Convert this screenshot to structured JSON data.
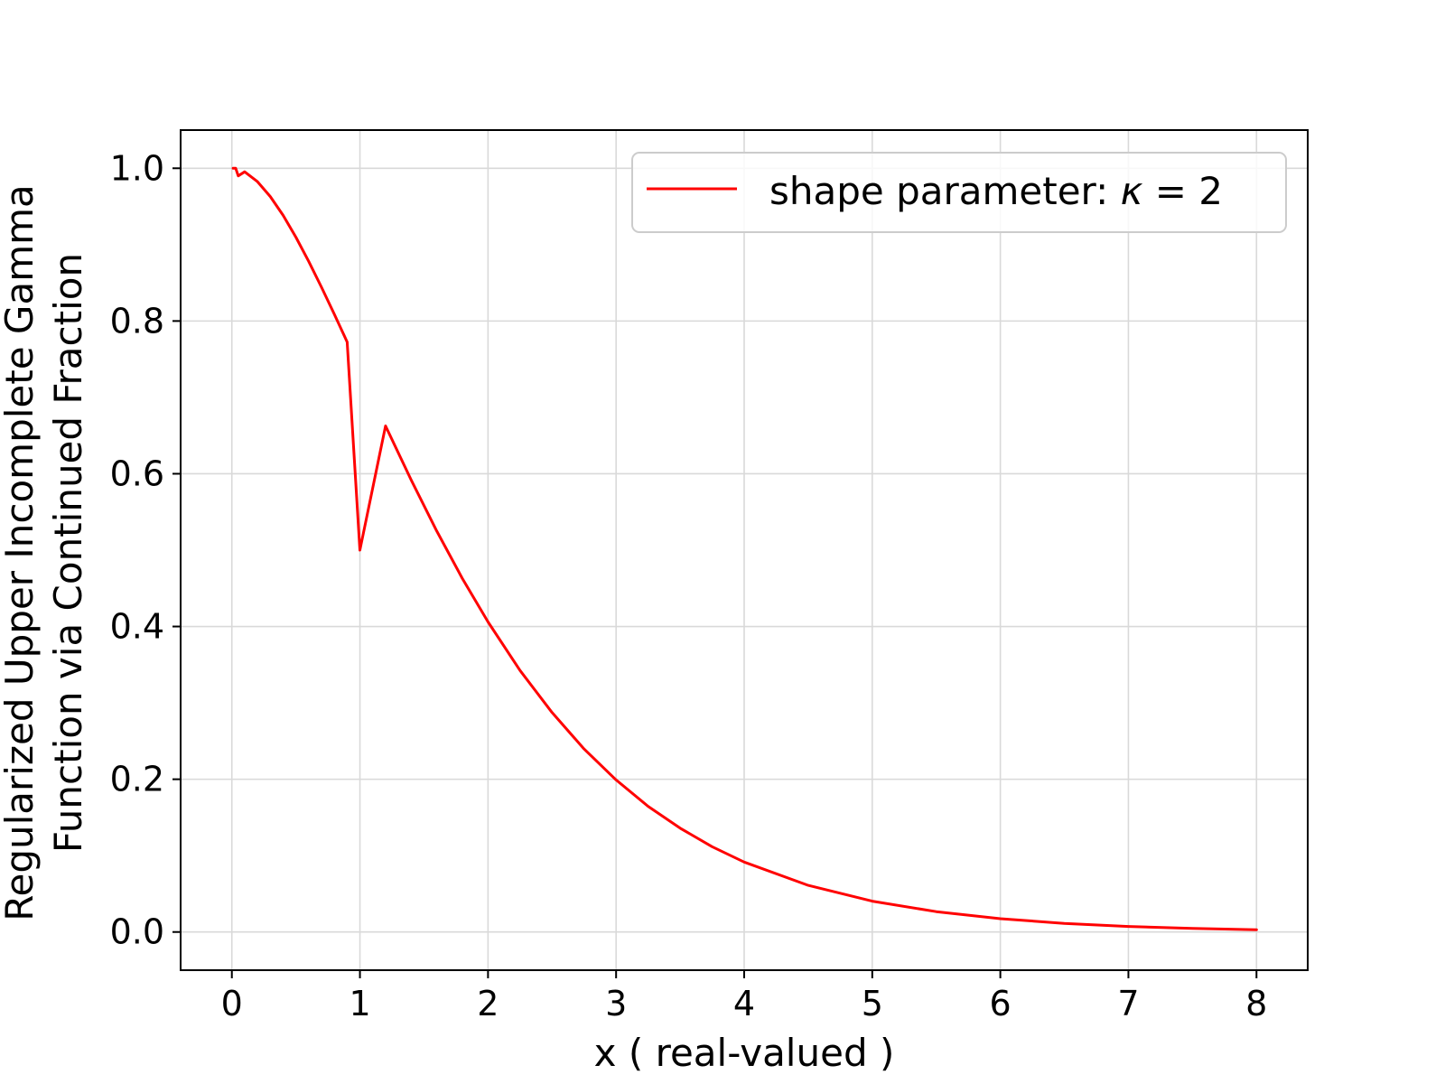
{
  "chart_data": {
    "type": "line",
    "title": "",
    "xlabel": "x ( real-valued )",
    "ylabel_line1": "Regularized Upper Incomplete Gamma",
    "ylabel_line2": "Function via Continued Fraction",
    "xlim": [
      -0.4,
      8.4
    ],
    "ylim": [
      -0.05,
      1.05
    ],
    "xticks": [
      0,
      1,
      2,
      3,
      4,
      5,
      6,
      7,
      8
    ],
    "xtick_labels": [
      "0",
      "1",
      "2",
      "3",
      "4",
      "5",
      "6",
      "7",
      "8"
    ],
    "yticks": [
      0.0,
      0.2,
      0.4,
      0.6,
      0.8,
      1.0
    ],
    "ytick_labels": [
      "0.0",
      "0.2",
      "0.4",
      "0.6",
      "0.8",
      "1.0"
    ],
    "grid": true,
    "legend_position": "top-right",
    "series": [
      {
        "name": "shape parameter: κ = 2",
        "legend_prefix": "shape parameter: ",
        "legend_symbol": "κ",
        "legend_suffix": " = 2",
        "color": "#ff0000",
        "x": [
          0.01,
          0.03,
          0.05,
          0.1,
          0.2,
          0.3,
          0.4,
          0.5,
          0.6,
          0.7,
          0.8,
          0.9,
          1.0,
          1.2,
          1.4,
          1.6,
          1.8,
          2.0,
          2.25,
          2.5,
          2.75,
          3.0,
          3.25,
          3.5,
          3.75,
          4.0,
          4.5,
          5.0,
          5.5,
          6.0,
          6.5,
          7.0,
          7.5,
          8.0
        ],
        "y": [
          1.0,
          1.0,
          0.99,
          0.9953,
          0.9825,
          0.963,
          0.9384,
          0.9098,
          0.8781,
          0.8442,
          0.8088,
          0.7725,
          0.5,
          0.6626,
          0.5918,
          0.5249,
          0.4628,
          0.406,
          0.3425,
          0.2873,
          0.2397,
          0.1991,
          0.1646,
          0.1359,
          0.1117,
          0.0916,
          0.0611,
          0.0404,
          0.0266,
          0.0174,
          0.0113,
          0.0073,
          0.0047,
          0.003
        ]
      }
    ]
  }
}
